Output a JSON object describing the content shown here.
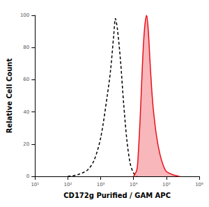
{
  "chart_data": {
    "type": "line",
    "x_label": "CD172g Purified / GAM APC",
    "y_label": "Relative Cell Count",
    "log": "x",
    "grid": false,
    "xlim": [
      10,
      1000000
    ],
    "xticks": [
      {
        "value": 10,
        "label": "10¹"
      },
      {
        "value": 100,
        "label": "10²"
      },
      {
        "value": 1000,
        "label": "10³"
      },
      {
        "value": 10000,
        "label": "10⁴"
      },
      {
        "value": 100000,
        "label": "10⁵"
      },
      {
        "value": 1000000,
        "label": "10⁶"
      }
    ],
    "ylim": [
      0,
      100
    ],
    "yticks": [
      0,
      20,
      40,
      60,
      80,
      100
    ],
    "series": [
      {
        "type": "line",
        "color": "#000000",
        "line_style": "dashed",
        "x": [
          100,
          200,
          400,
          630,
          1000,
          1580,
          2000,
          2500,
          2800,
          3200,
          4000,
          5000,
          6300,
          7900,
          10000,
          12600
        ],
        "values": [
          0,
          1,
          4,
          10,
          24,
          50,
          66,
          88,
          98,
          92,
          72,
          45,
          22,
          8,
          2,
          0
        ]
      },
      {
        "type": "area",
        "color": "#e8101a",
        "line_style": "solid",
        "x": [
          10000,
          12600,
          14000,
          15800,
          17800,
          20000,
          22400,
          25100,
          28200,
          31600,
          35500,
          39800,
          50100,
          63100,
          79400,
          100000,
          158000,
          251000
        ],
        "values": [
          0,
          4,
          15,
          35,
          60,
          82,
          95,
          100,
          90,
          72,
          55,
          42,
          25,
          14,
          7,
          3,
          1,
          0
        ]
      }
    ]
  }
}
